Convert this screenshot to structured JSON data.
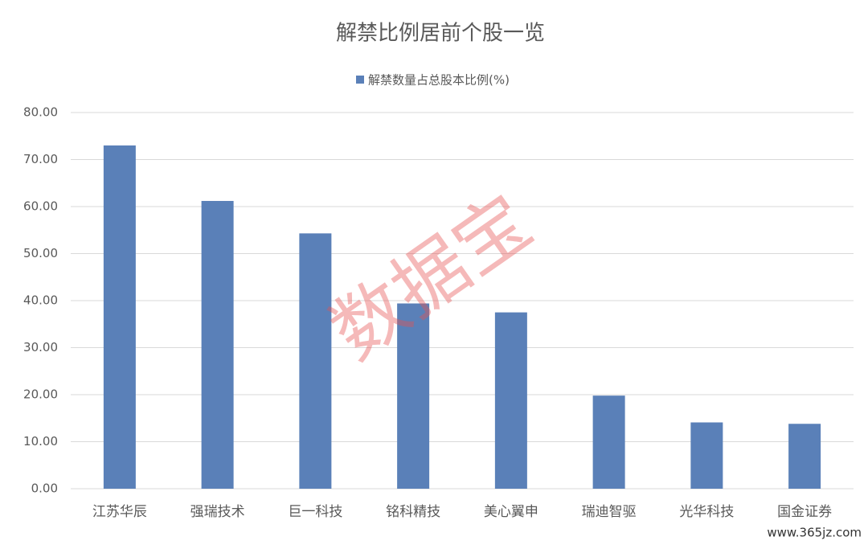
{
  "chart_data": {
    "type": "bar",
    "title": "解禁比例居前个股一览",
    "categories": [
      "江苏华辰",
      "强瑞技术",
      "巨一科技",
      "铭科精技",
      "美心翼申",
      "瑞迪智驱",
      "光华科技",
      "国金证券"
    ],
    "series": [
      {
        "name": "解禁数量占总股本比例(%)",
        "color": "#5a80b8",
        "values": [
          73.0,
          61.2,
          54.3,
          39.4,
          37.5,
          19.8,
          14.1,
          13.8
        ]
      }
    ],
    "ylim": [
      0,
      80
    ],
    "yticks": [
      {
        "value": 0,
        "label": "0.00"
      },
      {
        "value": 10,
        "label": "10.00"
      },
      {
        "value": 20,
        "label": "20.00"
      },
      {
        "value": 30,
        "label": "30.00"
      },
      {
        "value": 40,
        "label": "40.00"
      },
      {
        "value": 50,
        "label": "50.00"
      },
      {
        "value": 60,
        "label": "60.00"
      },
      {
        "value": 70,
        "label": "70.00"
      },
      {
        "value": 80,
        "label": "80.00"
      }
    ],
    "grid": true,
    "legend": "top",
    "watermark": "数据宝",
    "source": "www.365jz.com"
  }
}
